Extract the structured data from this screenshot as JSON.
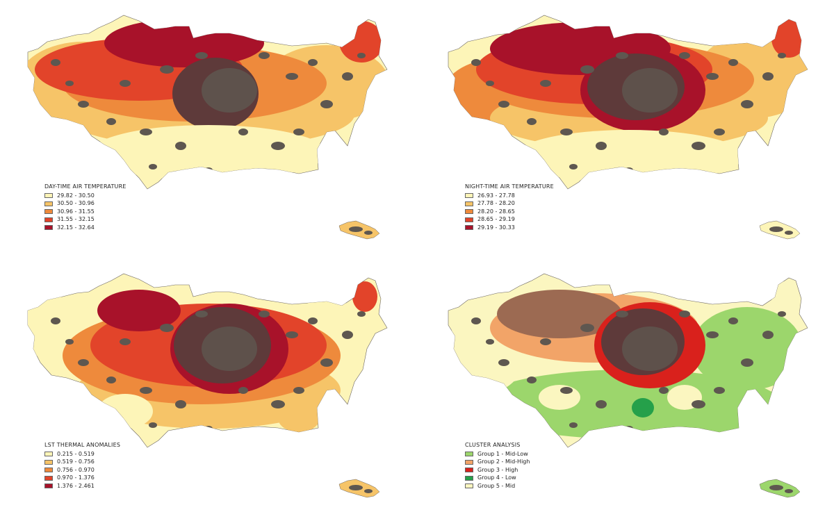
{
  "panels": [
    {
      "id": "daytime",
      "legend_title": "DAY-TIME AIR TEMPERATURE",
      "classes": [
        {
          "label": "29.82 - 30.50",
          "color": "#fdf5b8"
        },
        {
          "label": "30.50 - 30.96",
          "color": "#f6c468"
        },
        {
          "label": "30.96 - 31.55",
          "color": "#ee8a3c"
        },
        {
          "label": "31.55 - 32.15",
          "color": "#e2442a"
        },
        {
          "label": "32.15 - 32.64",
          "color": "#a8122a"
        }
      ]
    },
    {
      "id": "nighttime",
      "legend_title": "NIGHT-TIME AIR TEMPERATURE",
      "classes": [
        {
          "label": "26.93 - 27.78",
          "color": "#fdf5b8"
        },
        {
          "label": "27.78 - 28.20",
          "color": "#f6c468"
        },
        {
          "label": "28.20 - 28.65",
          "color": "#ee8a3c"
        },
        {
          "label": "28.65 - 29.19",
          "color": "#e2442a"
        },
        {
          "label": "29.19 - 30.33",
          "color": "#a8122a"
        }
      ]
    },
    {
      "id": "lst",
      "legend_title": "LST THERMAL ANOMALIES",
      "classes": [
        {
          "label": "0.215 - 0.519",
          "color": "#fdf5b8"
        },
        {
          "label": "0.519 - 0.756",
          "color": "#f6c468"
        },
        {
          "label": "0.756 - 0.970",
          "color": "#ee8a3c"
        },
        {
          "label": "0.970 - 1.376",
          "color": "#e2442a"
        },
        {
          "label": "1.376 - 2.461",
          "color": "#a8122a"
        }
      ]
    },
    {
      "id": "cluster",
      "legend_title": "CLUSTER ANALYSIS",
      "classes": [
        {
          "label": "Group 1 - Mid-Low",
          "color": "#9cd66c"
        },
        {
          "label": "Group 2 - Mid-High",
          "color": "#f2a468"
        },
        {
          "label": "Group 3 - High",
          "color": "#d9211c"
        },
        {
          "label": "Group 4 - Low",
          "color": "#25a04a"
        },
        {
          "label": "Group 5 - Mid",
          "color": "#fbf6c0"
        }
      ]
    }
  ],
  "urban_color": "#5e5750"
}
